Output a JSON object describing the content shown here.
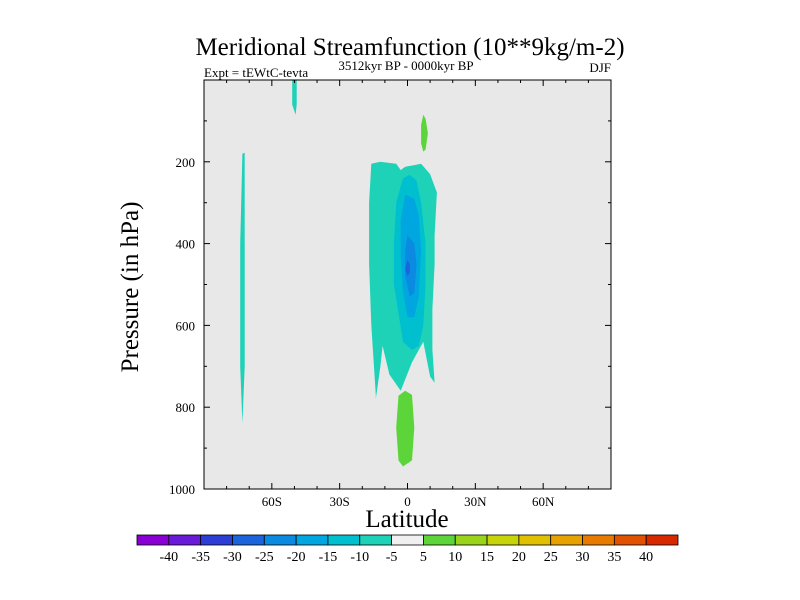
{
  "chart_data": {
    "type": "contour",
    "title": "Meridional Streamfunction (10**9kg/m-2)",
    "left_label": "Expt = tEWtC-tevta",
    "center_label": "3512kyr BP - 0000kyr BP",
    "right_label": "DJF",
    "xlabel": "Latitude",
    "ylabel": "Pressure (in hPa)",
    "xlim": [
      -90,
      90
    ],
    "ylim": [
      1000,
      0
    ],
    "x_ticks": [
      {
        "value": -60,
        "label": "60S"
      },
      {
        "value": -30,
        "label": "30S"
      },
      {
        "value": 0,
        "label": "0"
      },
      {
        "value": 30,
        "label": "30N"
      },
      {
        "value": 60,
        "label": "60N"
      }
    ],
    "y_ticks": [
      {
        "value": 200,
        "label": "200"
      },
      {
        "value": 400,
        "label": "400"
      },
      {
        "value": 600,
        "label": "600"
      },
      {
        "value": 800,
        "label": "800"
      },
      {
        "value": 1000,
        "label": "1000"
      }
    ],
    "background_color": "#e8e8e8",
    "colorbar": {
      "labels": [
        "-40",
        "-35",
        "-30",
        "-25",
        "-20",
        "-15",
        "-10",
        "-5",
        "5",
        "10",
        "15",
        "20",
        "25",
        "30",
        "35",
        "40"
      ],
      "colors": [
        "#8a00d4",
        "#6a1ad9",
        "#2c3ed6",
        "#1c64dc",
        "#0a8ae0",
        "#00a6e0",
        "#00c0d0",
        "#1ed2b8",
        "#f0f0f0",
        "#5cd53a",
        "#9ad41a",
        "#c8d40a",
        "#e0c000",
        "#e8a200",
        "#e87a00",
        "#e05200",
        "#d82800"
      ]
    },
    "regions": [
      {
        "name": "cell-minus-5-outer",
        "fill": "#1ed2b8",
        "level": -5,
        "points": [
          [
            -16,
            205
          ],
          [
            -12,
            200
          ],
          [
            -5,
            205
          ],
          [
            -3,
            220
          ],
          [
            -1,
            212
          ],
          [
            3,
            208
          ],
          [
            6,
            205
          ],
          [
            10,
            230
          ],
          [
            13,
            275
          ],
          [
            12,
            380
          ],
          [
            12,
            450
          ],
          [
            11,
            560
          ],
          [
            11,
            660
          ],
          [
            12,
            740
          ],
          [
            10,
            725
          ],
          [
            7,
            640
          ],
          [
            2,
            690
          ],
          [
            -3,
            760
          ],
          [
            -8,
            720
          ],
          [
            -11,
            650
          ],
          [
            -12,
            700
          ],
          [
            -14,
            780
          ],
          [
            -14,
            770
          ],
          [
            -16,
            600
          ],
          [
            -17,
            450
          ],
          [
            -17,
            300
          ]
        ]
      },
      {
        "name": "cell-minus-10",
        "fill": "#00c0d0",
        "level": -10,
        "points": [
          [
            -2,
            240
          ],
          [
            1,
            232
          ],
          [
            4,
            245
          ],
          [
            6,
            300
          ],
          [
            8,
            400
          ],
          [
            8,
            500
          ],
          [
            7,
            600
          ],
          [
            5,
            650
          ],
          [
            2,
            660
          ],
          [
            -2,
            640
          ],
          [
            -4,
            570
          ],
          [
            -6,
            500
          ],
          [
            -6,
            400
          ],
          [
            -5,
            300
          ],
          [
            -3,
            260
          ]
        ]
      },
      {
        "name": "cell-minus-15",
        "fill": "#00a6e0",
        "level": -15,
        "points": [
          [
            -1,
            280
          ],
          [
            3,
            290
          ],
          [
            5,
            330
          ],
          [
            6,
            420
          ],
          [
            5,
            530
          ],
          [
            3,
            580
          ],
          [
            0,
            580
          ],
          [
            -2,
            520
          ],
          [
            -3,
            440
          ],
          [
            -3,
            340
          ]
        ]
      },
      {
        "name": "cell-minus-20",
        "fill": "#0a8ae0",
        "level": -20,
        "points": [
          [
            0,
            380
          ],
          [
            3,
            400
          ],
          [
            4,
            450
          ],
          [
            3,
            520
          ],
          [
            1,
            530
          ],
          [
            -1,
            480
          ],
          [
            -1,
            420
          ]
        ]
      },
      {
        "name": "cell-minus-25",
        "fill": "#1c64dc",
        "level": -25,
        "points": [
          [
            0,
            440
          ],
          [
            1,
            450
          ],
          [
            1,
            470
          ],
          [
            0,
            480
          ],
          [
            -1,
            462
          ]
        ]
      },
      {
        "name": "cell-minus-5-south",
        "fill": "#1ed2b8",
        "level": -5,
        "points": [
          [
            -73,
            180
          ],
          [
            -72,
            178
          ],
          [
            -72,
            400
          ],
          [
            -72,
            700
          ],
          [
            -73,
            840
          ],
          [
            -74,
            700
          ],
          [
            -74,
            400
          ]
        ]
      },
      {
        "name": "cell-minus-5-top",
        "fill": "#1ed2b8",
        "level": -5,
        "points": [
          [
            -51,
            -2
          ],
          [
            -49,
            -2
          ],
          [
            -49,
            60
          ],
          [
            -49.5,
            85
          ],
          [
            -51,
            60
          ]
        ]
      },
      {
        "name": "cell-plus-5-upper",
        "fill": "#5cd53a",
        "level": 5,
        "points": [
          [
            7,
            85
          ],
          [
            8,
            95
          ],
          [
            9,
            130
          ],
          [
            8,
            170
          ],
          [
            7,
            175
          ],
          [
            6,
            155
          ],
          [
            6,
            110
          ]
        ]
      },
      {
        "name": "cell-plus-5-lower",
        "fill": "#5cd53a",
        "level": 5,
        "points": [
          [
            -4,
            772
          ],
          [
            -1,
            760
          ],
          [
            2,
            770
          ],
          [
            3,
            850
          ],
          [
            2,
            930
          ],
          [
            -2,
            945
          ],
          [
            -4,
            930
          ],
          [
            -5,
            850
          ]
        ]
      }
    ]
  }
}
